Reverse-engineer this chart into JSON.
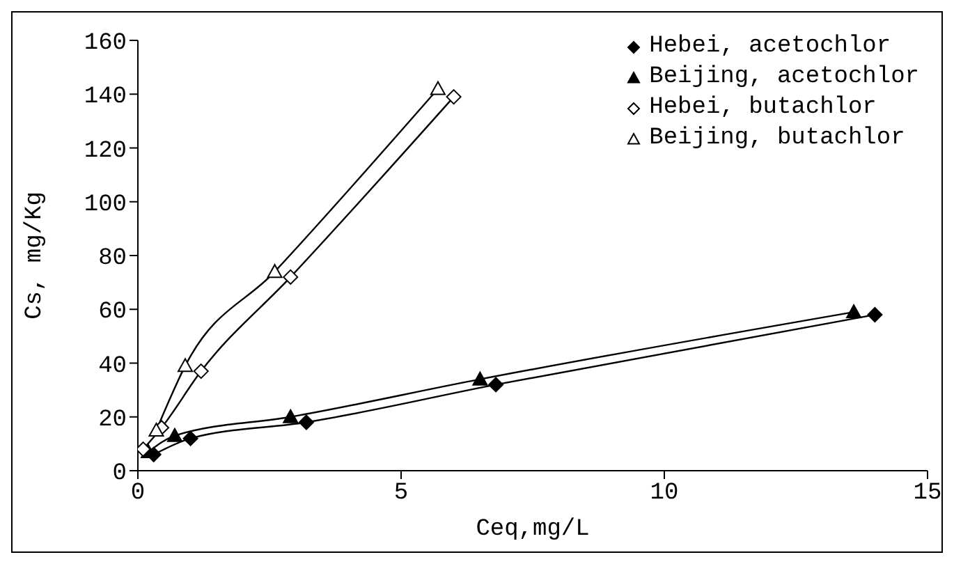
{
  "chart_data": {
    "type": "line",
    "xlabel": "Ceq,mg/L",
    "ylabel": "Cs, mg/Kg",
    "xlim": [
      0,
      15
    ],
    "xticks": [
      0,
      5,
      10,
      15
    ],
    "ylim": [
      0,
      160
    ],
    "yticks": [
      0,
      20,
      40,
      60,
      80,
      100,
      120,
      140,
      160
    ],
    "grid": false,
    "legend": "top right",
    "line_style": "solid",
    "series": [
      {
        "name": "Hebei, acetochlor",
        "color": "#000000",
        "marker": "diamond",
        "x": [
          0.3,
          1.0,
          3.2,
          6.8,
          14.0
        ],
        "values": [
          6,
          12,
          18,
          32,
          58
        ]
      },
      {
        "name": "Beijing, acetochlor",
        "color": "#000000",
        "marker": "triangle",
        "x": [
          0.2,
          0.7,
          2.9,
          6.5,
          13.6
        ],
        "values": [
          7,
          13,
          20,
          34,
          59
        ]
      },
      {
        "name": "Hebei, butachlor",
        "color": "#ffffff",
        "marker": "diamond",
        "x": [
          0.1,
          0.45,
          1.2,
          2.9,
          6.0
        ],
        "values": [
          8,
          16,
          37,
          72,
          139
        ]
      },
      {
        "name": "Beijing, butachlor",
        "color": "#ffffff",
        "marker": "triangle",
        "x": [
          0.35,
          0.9,
          2.6,
          5.7
        ],
        "values": [
          15,
          39,
          74,
          142
        ]
      }
    ]
  }
}
